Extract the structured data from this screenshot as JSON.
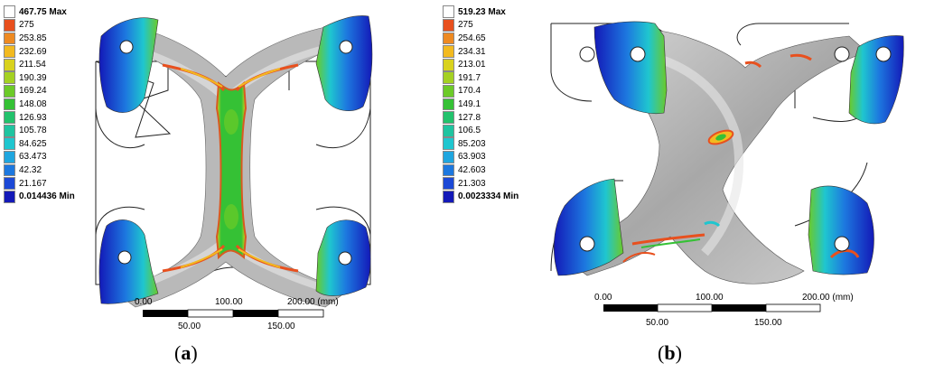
{
  "panel_a": {
    "caption_open": "(",
    "caption_letter": "a",
    "caption_close": ")",
    "legend": [
      {
        "label": "467.75 Max",
        "color": "#ffffff",
        "bold": true
      },
      {
        "label": "275",
        "color": "#e8501e",
        "bold": false
      },
      {
        "label": "253.85",
        "color": "#ee8a22",
        "bold": false
      },
      {
        "label": "232.69",
        "color": "#f2ba20",
        "bold": false
      },
      {
        "label": "211.54",
        "color": "#d9d21e",
        "bold": false
      },
      {
        "label": "190.39",
        "color": "#a4d122",
        "bold": false
      },
      {
        "label": "169.24",
        "color": "#6cca28",
        "bold": false
      },
      {
        "label": "148.08",
        "color": "#35c135",
        "bold": false
      },
      {
        "label": "126.93",
        "color": "#22c26c",
        "bold": false
      },
      {
        "label": "105.78",
        "color": "#1fc4a0",
        "bold": false
      },
      {
        "label": "84.625",
        "color": "#1fc6cf",
        "bold": false
      },
      {
        "label": "63.473",
        "color": "#1fa6df",
        "bold": false
      },
      {
        "label": "42.32",
        "color": "#1d78df",
        "bold": false
      },
      {
        "label": "21.167",
        "color": "#1c49d6",
        "bold": false
      },
      {
        "label": "0.014436 Min",
        "color": "#1319b8",
        "bold": true
      }
    ],
    "scale": {
      "top_labels": [
        "0.00",
        "100.00",
        "200.00 (mm)"
      ],
      "bottom_labels": [
        "50.00",
        "150.00"
      ]
    }
  },
  "panel_b": {
    "caption_open": "(",
    "caption_letter": "b",
    "caption_close": ")",
    "legend": [
      {
        "label": "519.23 Max",
        "color": "#ffffff",
        "bold": true
      },
      {
        "label": "275",
        "color": "#e8501e",
        "bold": false
      },
      {
        "label": "254.65",
        "color": "#ee8a22",
        "bold": false
      },
      {
        "label": "234.31",
        "color": "#f2ba20",
        "bold": false
      },
      {
        "label": "213.01",
        "color": "#d9d21e",
        "bold": false
      },
      {
        "label": "191.7",
        "color": "#a4d122",
        "bold": false
      },
      {
        "label": "170.4",
        "color": "#6cca28",
        "bold": false
      },
      {
        "label": "149.1",
        "color": "#35c135",
        "bold": false
      },
      {
        "label": "127.8",
        "color": "#22c26c",
        "bold": false
      },
      {
        "label": "106.5",
        "color": "#1fc4a0",
        "bold": false
      },
      {
        "label": "85.203",
        "color": "#1fc6cf",
        "bold": false
      },
      {
        "label": "63.903",
        "color": "#1fa6df",
        "bold": false
      },
      {
        "label": "42.603",
        "color": "#1d78df",
        "bold": false
      },
      {
        "label": "21.303",
        "color": "#1c49d6",
        "bold": false
      },
      {
        "label": "0.0023334 Min",
        "color": "#1319b8",
        "bold": true
      }
    ],
    "scale": {
      "top_labels": [
        "0.00",
        "100.00",
        "200.00 (mm)"
      ],
      "bottom_labels": [
        "50.00",
        "150.00"
      ]
    }
  }
}
